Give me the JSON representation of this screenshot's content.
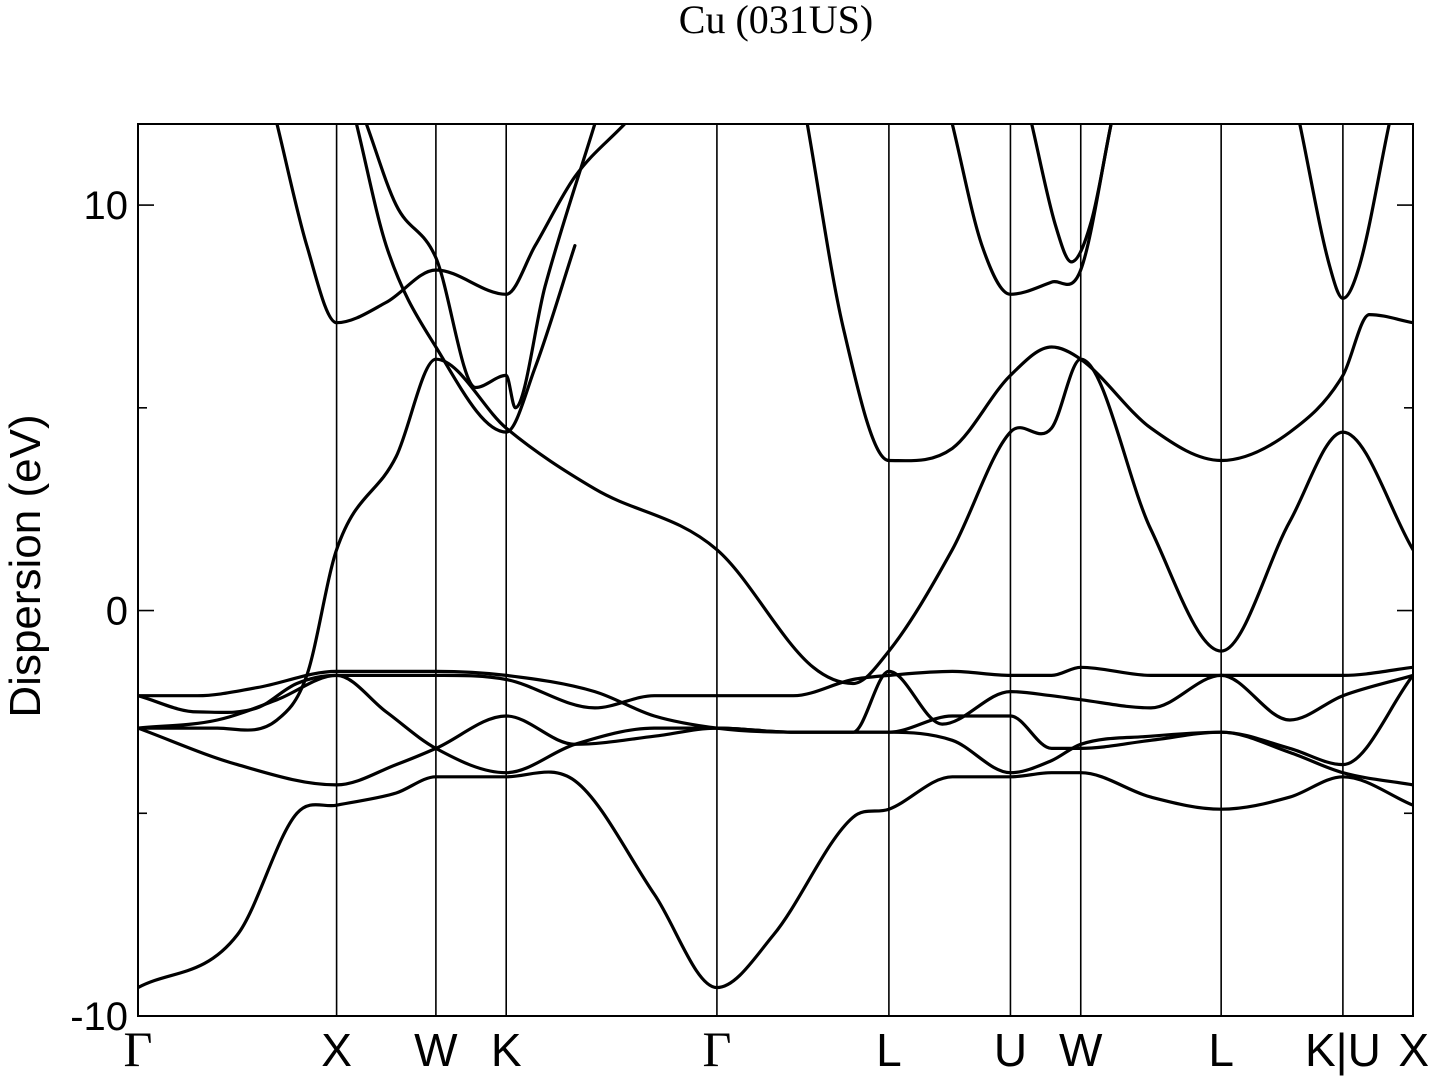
{
  "chart_data": {
    "type": "line",
    "title": "Cu (031US)",
    "ylabel": "Dispersion (eV)",
    "xlabel": "",
    "ylim": [
      -10,
      12
    ],
    "y_major_ticks": [
      -10,
      0,
      10
    ],
    "y_minor_ticks": [
      -5,
      5
    ],
    "y_tick_labels": [
      "-10",
      "0",
      "10"
    ],
    "grid": false,
    "legend": "none",
    "line_color": "#000000",
    "kpath_labels": [
      "Γ",
      "X",
      "W",
      "K",
      "Γ",
      "L",
      "U",
      "W",
      "L",
      "K|U",
      "X"
    ],
    "kpath_positions": [
      0,
      1,
      1.5,
      1.854,
      2.915,
      3.781,
      4.393,
      4.747,
      5.454,
      6.067,
      6.42
    ],
    "x_range": [
      0,
      6.42
    ],
    "series": [
      {
        "x": [
          0,
          0.5,
          0.8,
          1.0,
          1.3,
          1.5,
          1.854,
          2.2,
          2.6,
          2.915,
          3.2,
          3.6,
          3.781,
          4.1,
          4.393,
          4.6,
          4.747,
          5.1,
          5.454,
          5.8,
          6.067,
          6.42
        ],
        "values": [
          -9.3,
          -8.0,
          -5.0,
          -4.8,
          -4.5,
          -4.1,
          -4.1,
          -4.2,
          -7.0,
          -9.3,
          -8.0,
          -5.1,
          -4.9,
          -4.1,
          -4.1,
          -4.0,
          -4.0,
          -4.6,
          -4.9,
          -4.6,
          -4.1,
          -4.8
        ]
      },
      {
        "x": [
          0,
          0.4,
          0.7,
          0.85,
          1.0,
          1.3,
          1.5,
          1.854,
          2.3,
          2.915,
          3.4,
          3.6,
          3.781,
          4.1,
          4.393,
          4.6,
          4.747,
          5.1,
          5.454,
          5.8,
          6.067,
          6.42
        ],
        "values": [
          -2.9,
          -2.9,
          -2.7,
          -1.6,
          1.5,
          3.8,
          6.2,
          4.5,
          3.0,
          1.5,
          -1.4,
          -1.8,
          -1.0,
          1.5,
          4.4,
          4.5,
          6.2,
          2.0,
          -1.0,
          2.2,
          4.4,
          1.5
        ]
      },
      {
        "x": [
          0,
          0.3,
          0.6,
          0.8,
          1.0,
          1.5,
          1.854,
          2.3,
          2.6,
          2.915,
          3.3,
          3.6,
          3.781,
          4.1,
          4.393,
          4.6,
          4.747,
          5.1,
          5.454,
          5.8,
          6.067,
          6.42
        ],
        "values": [
          -2.1,
          -2.5,
          -2.4,
          -1.8,
          -1.6,
          -1.6,
          -1.7,
          -2.4,
          -2.1,
          -2.1,
          -2.1,
          -1.7,
          -1.6,
          -1.5,
          -1.6,
          -1.6,
          -1.4,
          -1.6,
          -1.6,
          -1.6,
          -1.6,
          -1.4
        ]
      },
      {
        "x": [
          0,
          0.3,
          0.6,
          1.0,
          1.25,
          1.5,
          1.854,
          2.3,
          2.6,
          2.915,
          3.3,
          3.6,
          3.781,
          4.05,
          4.393,
          4.6,
          4.747,
          5.1,
          5.454,
          5.8,
          6.067,
          6.42
        ],
        "values": [
          -2.1,
          -2.1,
          -1.9,
          -1.5,
          -1.5,
          -1.5,
          -1.6,
          -2.0,
          -2.6,
          -2.9,
          -3.0,
          -3.0,
          -1.5,
          -2.8,
          -2.0,
          -2.1,
          -2.2,
          -2.4,
          -1.6,
          -2.7,
          -2.1,
          -1.6
        ]
      },
      {
        "x": [
          0,
          0.4,
          0.7,
          1.0,
          1.25,
          1.5,
          1.854,
          2.2,
          2.6,
          2.915,
          3.3,
          3.6,
          3.781,
          4.1,
          4.393,
          4.6,
          4.747,
          5.1,
          5.454,
          5.8,
          6.067,
          6.42
        ],
        "values": [
          -2.9,
          -2.7,
          -2.2,
          -1.6,
          -2.5,
          -3.4,
          -4.0,
          -3.3,
          -2.9,
          -2.9,
          -3.0,
          -3.0,
          -3.0,
          -3.2,
          -4.0,
          -3.7,
          -3.3,
          -3.1,
          -3.0,
          -3.4,
          -3.8,
          -1.6
        ]
      },
      {
        "x": [
          0,
          0.5,
          1.0,
          1.3,
          1.5,
          1.854,
          2.2,
          2.6,
          2.915,
          3.3,
          3.781,
          4.1,
          4.393,
          4.6,
          4.747,
          5.1,
          5.454,
          5.8,
          6.067,
          6.42
        ],
        "values": [
          -2.9,
          -3.8,
          -4.3,
          -3.8,
          -3.4,
          -2.6,
          -3.3,
          -3.1,
          -2.9,
          -3.0,
          -3.0,
          -2.6,
          -2.6,
          -3.4,
          -3.4,
          -3.2,
          -3.0,
          -3.5,
          -4.0,
          -4.3
        ]
      },
      {
        "x": [
          0.7,
          0.85,
          1.0,
          1.25,
          1.5,
          1.854,
          2.0,
          2.2,
          2.45
        ],
        "values": [
          12,
          9.0,
          7.1,
          7.6,
          8.4,
          7.8,
          9.0,
          10.7,
          12
        ]
      },
      {
        "x": [
          1.1,
          1.25,
          1.5,
          1.854,
          2.0,
          2.2
        ],
        "values": [
          12,
          9.0,
          6.5,
          4.4,
          6.0,
          9.0
        ]
      },
      {
        "x": [
          1.15,
          1.3,
          1.5,
          1.7,
          1.854,
          1.9,
          2.05,
          2.3
        ],
        "values": [
          12,
          10.0,
          8.7,
          5.5,
          5.8,
          5.0,
          8.0,
          12
        ]
      },
      {
        "x": [
          3.37,
          3.55,
          3.781,
          4.1,
          4.393,
          4.6,
          4.747,
          5.1,
          5.454,
          5.8,
          6.067,
          6.2,
          6.42
        ],
        "values": [
          12,
          7.0,
          3.7,
          4.0,
          5.8,
          6.5,
          6.2,
          4.5,
          3.7,
          4.4,
          5.8,
          7.3,
          7.1
        ]
      },
      {
        "x": [
          4.1,
          4.25,
          4.393,
          4.6,
          4.747,
          4.9
        ],
        "values": [
          12,
          9.0,
          7.8,
          8.1,
          8.4,
          12
        ]
      },
      {
        "x": [
          4.5,
          4.62,
          4.7,
          4.8,
          4.9
        ],
        "values": [
          12,
          9.5,
          8.6,
          9.6,
          12
        ]
      },
      {
        "x": [
          5.85,
          6.0,
          6.067,
          6.15,
          6.3
        ],
        "values": [
          12,
          8.5,
          7.7,
          8.5,
          12
        ]
      }
    ]
  }
}
